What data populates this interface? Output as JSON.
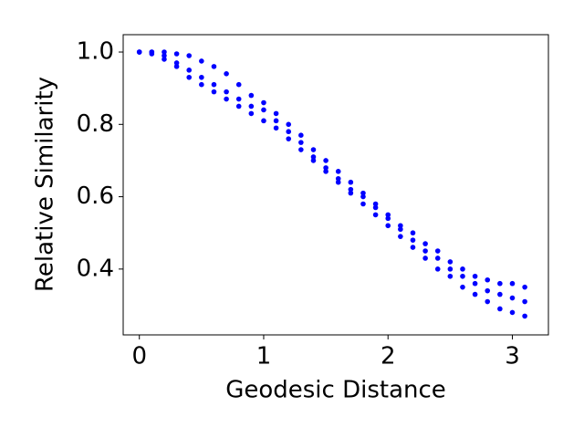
{
  "chart_data": {
    "type": "scatter",
    "x_label": "Geodesic Distance",
    "y_label": "Relative Similarity",
    "color": "#0000ff",
    "x": [
      0.0,
      0.0,
      0.0,
      0.1,
      0.1,
      0.1,
      0.2,
      0.2,
      0.2,
      0.3,
      0.3,
      0.3,
      0.4,
      0.4,
      0.4,
      0.5,
      0.5,
      0.5,
      0.6,
      0.6,
      0.6,
      0.7,
      0.7,
      0.7,
      0.8,
      0.8,
      0.8,
      0.9,
      0.9,
      0.9,
      1.0,
      1.0,
      1.0,
      1.1,
      1.1,
      1.1,
      1.2,
      1.2,
      1.2,
      1.3,
      1.3,
      1.3,
      1.4,
      1.4,
      1.4,
      1.5,
      1.5,
      1.5,
      1.6,
      1.6,
      1.6,
      1.7,
      1.7,
      1.7,
      1.8,
      1.8,
      1.8,
      1.9,
      1.9,
      1.9,
      2.0,
      2.0,
      2.0,
      2.1,
      2.1,
      2.1,
      2.2,
      2.2,
      2.2,
      2.3,
      2.3,
      2.3,
      2.4,
      2.4,
      2.4,
      2.5,
      2.5,
      2.5,
      2.6,
      2.6,
      2.6,
      2.7,
      2.7,
      2.7,
      2.8,
      2.8,
      2.8,
      2.9,
      2.9,
      2.9,
      3.0,
      3.0,
      3.0,
      3.1,
      3.1,
      3.1
    ],
    "y": [
      1.0,
      1.0,
      1.0,
      1.0,
      1.0,
      0.995,
      1.0,
      0.99,
      0.98,
      0.995,
      0.97,
      0.96,
      0.99,
      0.95,
      0.93,
      0.975,
      0.93,
      0.91,
      0.96,
      0.91,
      0.89,
      0.94,
      0.89,
      0.87,
      0.91,
      0.87,
      0.85,
      0.88,
      0.85,
      0.83,
      0.86,
      0.84,
      0.81,
      0.83,
      0.81,
      0.79,
      0.8,
      0.78,
      0.76,
      0.77,
      0.75,
      0.73,
      0.73,
      0.71,
      0.7,
      0.7,
      0.68,
      0.67,
      0.67,
      0.65,
      0.64,
      0.64,
      0.62,
      0.61,
      0.61,
      0.6,
      0.58,
      0.58,
      0.57,
      0.55,
      0.55,
      0.54,
      0.52,
      0.52,
      0.51,
      0.49,
      0.5,
      0.48,
      0.46,
      0.47,
      0.45,
      0.43,
      0.45,
      0.43,
      0.4,
      0.42,
      0.4,
      0.38,
      0.4,
      0.38,
      0.35,
      0.38,
      0.36,
      0.33,
      0.37,
      0.34,
      0.31,
      0.36,
      0.33,
      0.29,
      0.36,
      0.32,
      0.28,
      0.35,
      0.31,
      0.27
    ],
    "xlim": [
      -0.13,
      3.29
    ],
    "ylim": [
      0.218,
      1.048
    ],
    "xticks": [
      0,
      1,
      2,
      3
    ],
    "yticks": [
      {
        "value": 0.4,
        "label": "0.4"
      },
      {
        "value": 0.6,
        "label": "0.6"
      },
      {
        "value": 0.8,
        "label": "0.8"
      },
      {
        "value": 1.0,
        "label": "1.0"
      }
    ]
  }
}
